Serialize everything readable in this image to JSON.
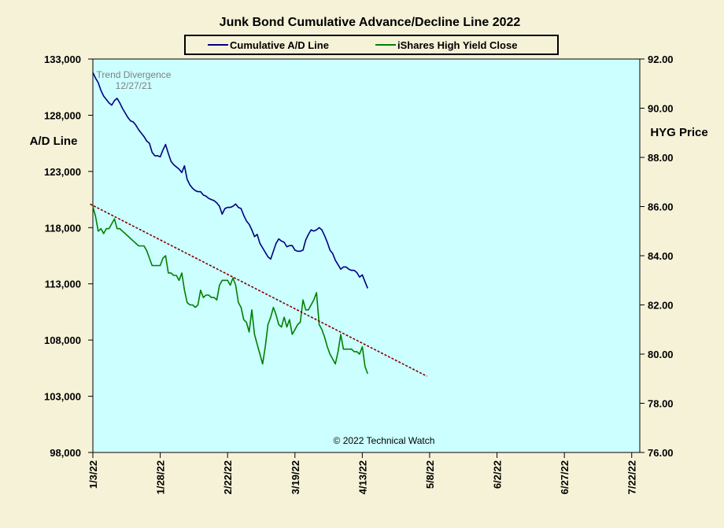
{
  "chart_data": {
    "type": "line",
    "title": "Junk Bond Cumulative  Advance/Decline  Line  2022",
    "ylabel_left": "A/D Line",
    "ylabel_right": "HYG Price",
    "copyright": "© 2022 Technical Watch",
    "annotation": [
      "Trend Divergence",
      "12/27/21"
    ],
    "grid": false,
    "legend_position": "top",
    "x_range": [
      0,
      203
    ],
    "x_ticks": [
      {
        "label": "1/3/22",
        "x": 0
      },
      {
        "label": "1/28/22",
        "x": 25
      },
      {
        "label": "2/22/22",
        "x": 50
      },
      {
        "label": "3/19/22",
        "x": 75
      },
      {
        "label": "4/13/22",
        "x": 100
      },
      {
        "label": "5/8/22",
        "x": 125
      },
      {
        "label": "6/2/22",
        "x": 150
      },
      {
        "label": "6/27/22",
        "x": 175
      },
      {
        "label": "7/22/22",
        "x": 200
      }
    ],
    "left_axis": {
      "ylim": [
        98000,
        133000
      ],
      "ticks": [
        "133,000",
        "128,000",
        "123,000",
        "118,000",
        "113,000",
        "108,000",
        "103,000",
        "98,000"
      ],
      "tick_values": [
        133000,
        128000,
        123000,
        118000,
        113000,
        108000,
        103000,
        98000
      ]
    },
    "right_axis": {
      "ylim": [
        76,
        92
      ],
      "ticks": [
        "92.00",
        "90.00",
        "88.00",
        "86.00",
        "84.00",
        "82.00",
        "80.00",
        "78.00",
        "76.00"
      ],
      "tick_values": [
        92,
        90,
        88,
        86,
        84,
        82,
        80,
        78,
        76
      ]
    },
    "series": [
      {
        "name": "Cumulative A/D Line",
        "axis": "left",
        "color": "#000080",
        "points": [
          [
            0,
            131800
          ],
          [
            1,
            131300
          ],
          [
            2,
            130900
          ],
          [
            3,
            130200
          ],
          [
            4,
            129700
          ],
          [
            5,
            129400
          ],
          [
            6,
            129100
          ],
          [
            7,
            128900
          ],
          [
            8,
            129300
          ],
          [
            9,
            129500
          ],
          [
            10,
            129100
          ],
          [
            11,
            128600
          ],
          [
            12,
            128200
          ],
          [
            13,
            127800
          ],
          [
            14,
            127500
          ],
          [
            15,
            127400
          ],
          [
            16,
            127100
          ],
          [
            17,
            126700
          ],
          [
            18,
            126400
          ],
          [
            19,
            126100
          ],
          [
            20,
            125700
          ],
          [
            21,
            125500
          ],
          [
            22,
            124700
          ],
          [
            23,
            124400
          ],
          [
            24,
            124400
          ],
          [
            25,
            124300
          ],
          [
            26,
            124900
          ],
          [
            27,
            125400
          ],
          [
            28,
            124600
          ],
          [
            29,
            123900
          ],
          [
            30,
            123600
          ],
          [
            31,
            123400
          ],
          [
            32,
            123200
          ],
          [
            33,
            122900
          ],
          [
            34,
            123500
          ],
          [
            35,
            122300
          ],
          [
            36,
            121800
          ],
          [
            37,
            121500
          ],
          [
            38,
            121300
          ],
          [
            39,
            121200
          ],
          [
            40,
            121200
          ],
          [
            41,
            120900
          ],
          [
            42,
            120800
          ],
          [
            43,
            120600
          ],
          [
            44,
            120500
          ],
          [
            45,
            120400
          ],
          [
            46,
            120200
          ],
          [
            47,
            119900
          ],
          [
            48,
            119200
          ],
          [
            49,
            119700
          ],
          [
            50,
            119800
          ],
          [
            51,
            119800
          ],
          [
            52,
            119900
          ],
          [
            53,
            120100
          ],
          [
            54,
            119800
          ],
          [
            55,
            119700
          ],
          [
            56,
            119100
          ],
          [
            57,
            118600
          ],
          [
            58,
            118300
          ],
          [
            59,
            117800
          ],
          [
            60,
            117200
          ],
          [
            61,
            117400
          ],
          [
            62,
            116600
          ],
          [
            63,
            116200
          ],
          [
            64,
            115800
          ],
          [
            65,
            115400
          ],
          [
            66,
            115200
          ],
          [
            67,
            115900
          ],
          [
            68,
            116600
          ],
          [
            69,
            117000
          ],
          [
            70,
            116800
          ],
          [
            71,
            116700
          ],
          [
            72,
            116300
          ],
          [
            73,
            116400
          ],
          [
            74,
            116400
          ],
          [
            75,
            116000
          ],
          [
            76,
            115900
          ],
          [
            77,
            115900
          ],
          [
            78,
            116000
          ],
          [
            79,
            116900
          ],
          [
            80,
            117400
          ],
          [
            81,
            117800
          ],
          [
            82,
            117700
          ],
          [
            83,
            117800
          ],
          [
            84,
            118000
          ],
          [
            85,
            117800
          ],
          [
            86,
            117300
          ],
          [
            87,
            116700
          ],
          [
            88,
            116000
          ],
          [
            89,
            115700
          ],
          [
            90,
            115100
          ],
          [
            91,
            114700
          ],
          [
            92,
            114300
          ],
          [
            93,
            114500
          ],
          [
            94,
            114500
          ],
          [
            95,
            114300
          ],
          [
            96,
            114200
          ],
          [
            97,
            114200
          ],
          [
            98,
            114000
          ],
          [
            99,
            113600
          ],
          [
            100,
            113800
          ],
          [
            101,
            113200
          ],
          [
            102,
            112600
          ]
        ]
      },
      {
        "name": "iShares High Yield Close",
        "axis": "right",
        "color": "#008000",
        "points": [
          [
            0,
            86.0
          ],
          [
            1,
            85.6
          ],
          [
            2,
            85.0
          ],
          [
            3,
            85.1
          ],
          [
            4,
            84.9
          ],
          [
            5,
            85.1
          ],
          [
            6,
            85.1
          ],
          [
            7,
            85.3
          ],
          [
            8,
            85.5
          ],
          [
            9,
            85.1
          ],
          [
            10,
            85.1
          ],
          [
            11,
            85.0
          ],
          [
            12,
            84.9
          ],
          [
            13,
            84.8
          ],
          [
            14,
            84.7
          ],
          [
            15,
            84.6
          ],
          [
            16,
            84.5
          ],
          [
            17,
            84.4
          ],
          [
            18,
            84.4
          ],
          [
            19,
            84.4
          ],
          [
            20,
            84.2
          ],
          [
            21,
            83.9
          ],
          [
            22,
            83.6
          ],
          [
            23,
            83.6
          ],
          [
            24,
            83.6
          ],
          [
            25,
            83.6
          ],
          [
            26,
            83.9
          ],
          [
            27,
            84.0
          ],
          [
            28,
            83.3
          ],
          [
            29,
            83.3
          ],
          [
            30,
            83.2
          ],
          [
            31,
            83.2
          ],
          [
            32,
            83.0
          ],
          [
            33,
            83.3
          ],
          [
            34,
            82.6
          ],
          [
            35,
            82.1
          ],
          [
            36,
            82.0
          ],
          [
            37,
            82.0
          ],
          [
            38,
            81.9
          ],
          [
            39,
            82.0
          ],
          [
            40,
            82.6
          ],
          [
            41,
            82.3
          ],
          [
            42,
            82.4
          ],
          [
            43,
            82.4
          ],
          [
            44,
            82.3
          ],
          [
            45,
            82.3
          ],
          [
            46,
            82.2
          ],
          [
            47,
            82.8
          ],
          [
            48,
            83.0
          ],
          [
            49,
            83.0
          ],
          [
            50,
            83.0
          ],
          [
            51,
            82.8
          ],
          [
            52,
            83.1
          ],
          [
            53,
            82.8
          ],
          [
            54,
            82.1
          ],
          [
            55,
            81.9
          ],
          [
            56,
            81.4
          ],
          [
            57,
            81.3
          ],
          [
            58,
            80.9
          ],
          [
            59,
            81.8
          ],
          [
            60,
            80.8
          ],
          [
            61,
            80.4
          ],
          [
            62,
            80.0
          ],
          [
            63,
            79.6
          ],
          [
            64,
            80.3
          ],
          [
            65,
            81.2
          ],
          [
            66,
            81.5
          ],
          [
            67,
            81.9
          ],
          [
            68,
            81.6
          ],
          [
            69,
            81.2
          ],
          [
            70,
            81.1
          ],
          [
            71,
            81.5
          ],
          [
            72,
            81.1
          ],
          [
            73,
            81.4
          ],
          [
            74,
            80.8
          ],
          [
            75,
            81.0
          ],
          [
            76,
            81.2
          ],
          [
            77,
            81.3
          ],
          [
            78,
            82.2
          ],
          [
            79,
            81.8
          ],
          [
            80,
            81.8
          ],
          [
            81,
            82.0
          ],
          [
            82,
            82.2
          ],
          [
            83,
            82.5
          ],
          [
            84,
            81.2
          ],
          [
            85,
            81.0
          ],
          [
            86,
            80.7
          ],
          [
            87,
            80.3
          ],
          [
            88,
            80.0
          ],
          [
            89,
            79.8
          ],
          [
            90,
            79.6
          ],
          [
            91,
            80.1
          ],
          [
            92,
            80.8
          ],
          [
            93,
            80.2
          ],
          [
            94,
            80.2
          ],
          [
            95,
            80.2
          ],
          [
            96,
            80.2
          ],
          [
            97,
            80.1
          ],
          [
            98,
            80.1
          ],
          [
            99,
            80.0
          ],
          [
            100,
            80.3
          ],
          [
            101,
            79.5
          ],
          [
            102,
            79.2
          ]
        ]
      }
    ],
    "trendline": {
      "label": "Trend Divergence",
      "color": "#800000",
      "axis": "right",
      "points": [
        [
          -1,
          86.1
        ],
        [
          124,
          79.1
        ]
      ]
    }
  }
}
